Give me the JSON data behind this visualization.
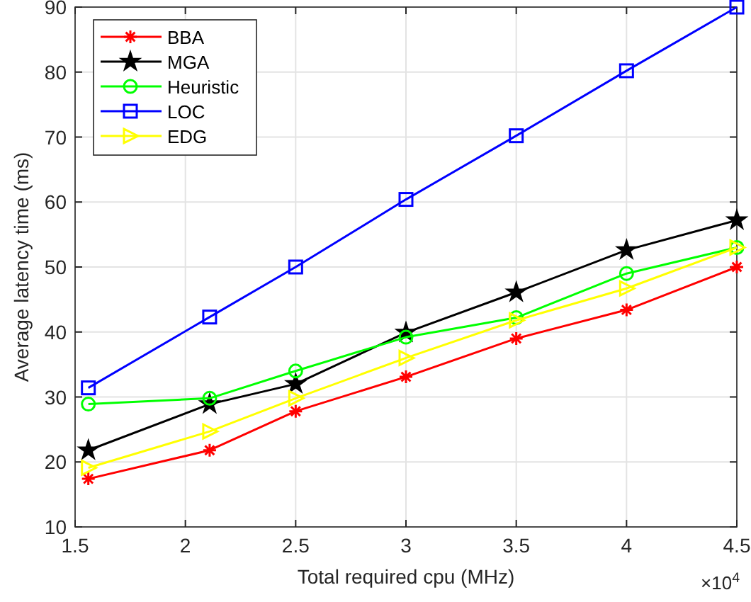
{
  "chart_data": {
    "type": "line",
    "xlabel": "Total required cpu (MHz)",
    "ylabel": "Average latency time (ms)",
    "x": [
      1.56,
      2.11,
      2.5,
      3,
      3.5,
      4,
      4.5
    ],
    "xlim": [
      1.5,
      4.5
    ],
    "xticks": [
      1.5,
      2,
      2.5,
      3,
      3.5,
      4,
      4.5
    ],
    "ylim": [
      10,
      90
    ],
    "yticks": [
      10,
      20,
      30,
      40,
      50,
      60,
      70,
      80,
      90
    ],
    "annotations": [
      "×10$^{4}$"
    ],
    "grid": true,
    "legend": "top left",
    "line_style": "solid",
    "series": [
      {
        "name": "BBA",
        "color": "#ff0000",
        "marker": "cross",
        "values": [
          17.4,
          21.8,
          27.8,
          33.1,
          39.0,
          43.4,
          50.0
        ]
      },
      {
        "name": "MGA",
        "color": "#000000",
        "marker": "star",
        "values": [
          21.8,
          28.9,
          32.0,
          39.9,
          46.1,
          52.6,
          57.2
        ]
      },
      {
        "name": "Heuristic",
        "color": "#00ff00",
        "marker": "circle",
        "values": [
          28.9,
          29.8,
          34.0,
          39.2,
          42.2,
          49.0,
          53.0
        ]
      },
      {
        "name": "LOC",
        "color": "#0000ff",
        "marker": "square",
        "values": [
          31.4,
          42.3,
          50.0,
          60.4,
          70.2,
          80.2,
          90.0
        ]
      },
      {
        "name": "EDG",
        "color": "#ffff00",
        "marker": "triangle",
        "values": [
          19.1,
          24.7,
          29.8,
          36.0,
          41.8,
          46.7,
          53.0
        ]
      }
    ]
  }
}
